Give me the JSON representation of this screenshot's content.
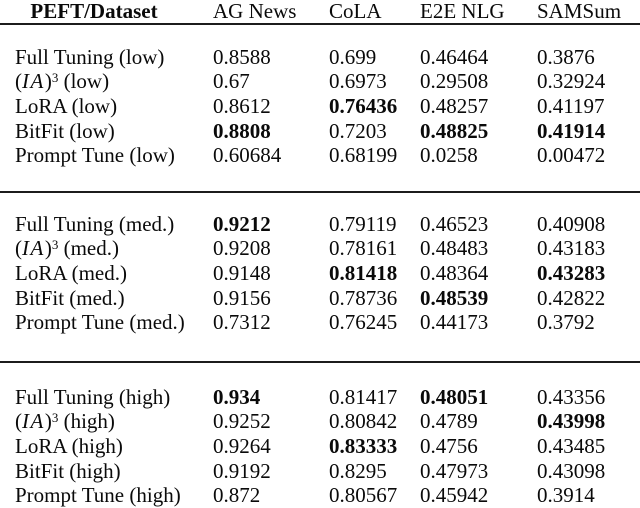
{
  "meta": {
    "background_color": "#ffffff",
    "text_color": "#0a0a0a",
    "rule_color": "#1c1c1c"
  },
  "table": {
    "columns": [
      "PEFT/Dataset",
      "AG News",
      "CoLA",
      "E2E NLG",
      "SAMSum"
    ],
    "sections": [
      {
        "name": "low",
        "rows": [
          {
            "label": "Full Tuning (low)",
            "values": [
              "0.8588",
              "0.699",
              "0.46464",
              "0.3876"
            ],
            "bold": [
              false,
              false,
              false,
              false
            ]
          },
          {
            "label_parts": {
              "open": "(",
              "italic": "IA",
              "close": ")",
              "sup": "3",
              "suffix": " (low)"
            },
            "values": [
              "0.67",
              "0.6973",
              "0.29508",
              "0.32924"
            ],
            "bold": [
              false,
              false,
              false,
              false
            ]
          },
          {
            "label": "LoRA (low)",
            "values": [
              "0.8612",
              "0.76436",
              "0.48257",
              "0.41197"
            ],
            "bold": [
              false,
              true,
              false,
              false
            ]
          },
          {
            "label": "BitFit (low)",
            "values": [
              "0.8808",
              "0.7203",
              "0.48825",
              "0.41914"
            ],
            "bold": [
              true,
              false,
              true,
              true
            ]
          },
          {
            "label": "Prompt Tune (low)",
            "values": [
              "0.60684",
              "0.68199",
              "0.0258",
              "0.00472"
            ],
            "bold": [
              false,
              false,
              false,
              false
            ]
          }
        ]
      },
      {
        "name": "med",
        "rows": [
          {
            "label": "Full Tuning (med.)",
            "values": [
              "0.9212",
              "0.79119",
              "0.46523",
              "0.40908"
            ],
            "bold": [
              true,
              false,
              false,
              false
            ]
          },
          {
            "label_parts": {
              "open": "(",
              "italic": "IA",
              "close": ")",
              "sup": "3",
              "suffix": " (med.)"
            },
            "values": [
              "0.9208",
              "0.78161",
              "0.48483",
              "0.43183"
            ],
            "bold": [
              false,
              false,
              false,
              false
            ]
          },
          {
            "label": "LoRA (med.)",
            "values": [
              "0.9148",
              "0.81418",
              "0.48364",
              "0.43283"
            ],
            "bold": [
              false,
              true,
              false,
              true
            ]
          },
          {
            "label": "BitFit (med.)",
            "values": [
              "0.9156",
              "0.78736",
              "0.48539",
              "0.42822"
            ],
            "bold": [
              false,
              false,
              true,
              false
            ]
          },
          {
            "label": "Prompt Tune (med.)",
            "values": [
              "0.7312",
              "0.76245",
              "0.44173",
              "0.3792"
            ],
            "bold": [
              false,
              false,
              false,
              false
            ]
          }
        ]
      },
      {
        "name": "high",
        "rows": [
          {
            "label": "Full Tuning (high)",
            "values": [
              "0.934",
              "0.81417",
              "0.48051",
              "0.43356"
            ],
            "bold": [
              true,
              false,
              true,
              false
            ]
          },
          {
            "label_parts": {
              "open": "(",
              "italic": "IA",
              "close": ")",
              "sup": "3",
              "suffix": " (high)"
            },
            "values": [
              "0.9252",
              "0.80842",
              "0.4789",
              "0.43998"
            ],
            "bold": [
              false,
              false,
              false,
              true
            ]
          },
          {
            "label": "LoRA (high)",
            "values": [
              "0.9264",
              "0.83333",
              "0.4756",
              "0.43485"
            ],
            "bold": [
              false,
              true,
              false,
              false
            ]
          },
          {
            "label": "BitFit (high)",
            "values": [
              "0.9192",
              "0.8295",
              "0.47973",
              "0.43098"
            ],
            "bold": [
              false,
              false,
              false,
              false
            ]
          },
          {
            "label": "Prompt Tune (high)",
            "values": [
              "0.872",
              "0.80567",
              "0.45942",
              "0.3914"
            ],
            "bold": [
              false,
              false,
              false,
              false
            ]
          }
        ]
      }
    ]
  }
}
